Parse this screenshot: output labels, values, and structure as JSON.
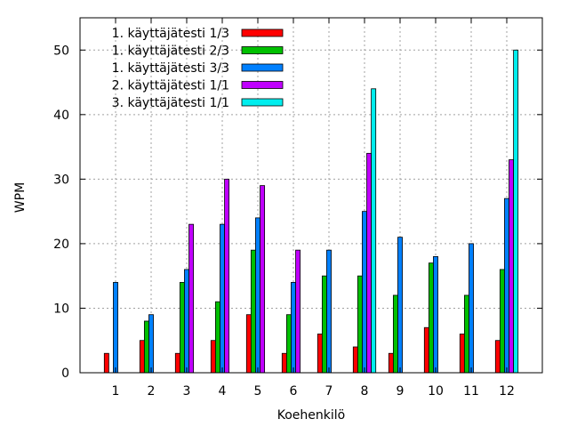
{
  "chart_data": {
    "type": "bar",
    "xlabel": "Koehenkilö",
    "ylabel": "WPM",
    "ylim": [
      0,
      55
    ],
    "yticks": [
      0,
      10,
      20,
      30,
      40,
      50
    ],
    "grid": true,
    "legend_position": "top-left",
    "categories": [
      "1",
      "2",
      "3",
      "4",
      "5",
      "6",
      "7",
      "8",
      "9",
      "10",
      "11",
      "12"
    ],
    "series": [
      {
        "name": "1. käyttäjätesti 1/3",
        "color": "#ff0000",
        "values": [
          3,
          5,
          3,
          5,
          9,
          3,
          6,
          4,
          3,
          7,
          6,
          5
        ]
      },
      {
        "name": "1. käyttäjätesti 2/3",
        "color": "#00c000",
        "values": [
          null,
          8,
          14,
          11,
          19,
          9,
          15,
          15,
          12,
          17,
          12,
          16
        ]
      },
      {
        "name": "1. käyttäjätesti 3/3",
        "color": "#0080ff",
        "values": [
          14,
          9,
          16,
          23,
          24,
          14,
          19,
          25,
          21,
          18,
          20,
          27
        ]
      },
      {
        "name": "2. käyttäjätesti 1/1",
        "color": "#c000ff",
        "values": [
          null,
          null,
          23,
          30,
          29,
          19,
          null,
          34,
          null,
          null,
          null,
          33
        ]
      },
      {
        "name": "3. käyttäjätesti 1/1",
        "color": "#00eeee",
        "values": [
          null,
          null,
          null,
          null,
          null,
          null,
          null,
          44,
          null,
          null,
          null,
          50
        ]
      }
    ]
  }
}
